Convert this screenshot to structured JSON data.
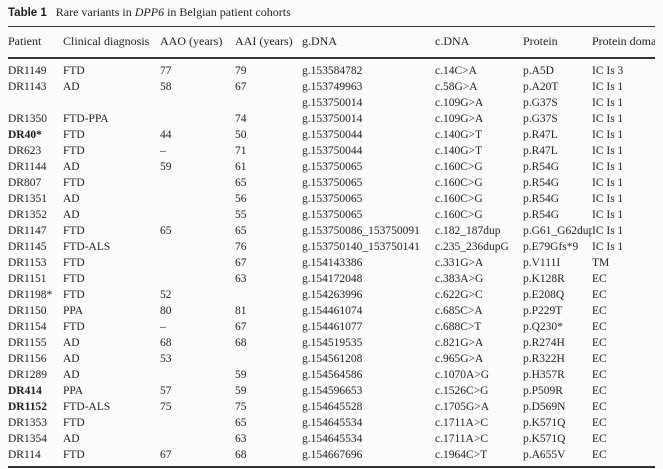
{
  "table": {
    "caption_label": "Table 1",
    "caption_prefix": "Rare variants in ",
    "caption_gene": "DPP6",
    "caption_suffix": " in Belgian patient cohorts",
    "columns": [
      "Patient",
      "Clinical diagnosis",
      "AAO (years)",
      "AAI (years)",
      "g.DNA",
      "c.DNA",
      "Protein",
      "Protein domain"
    ],
    "row_keys": [
      "patient",
      "diagnosis",
      "aao",
      "aai",
      "gdna",
      "cdna",
      "protein",
      "domain"
    ],
    "rows": [
      {
        "patient": "DR1149",
        "bold": false,
        "diagnosis": "FTD",
        "aao": "77",
        "aai": "79",
        "gdna": "g.153584782",
        "cdna": "c.14C>A",
        "protein": "p.A5D",
        "domain": "IC Is 3"
      },
      {
        "patient": "DR1143",
        "bold": false,
        "diagnosis": "AD",
        "aao": "58",
        "aai": "67",
        "gdna": "g.153749963",
        "cdna": "c.58G>A",
        "protein": "p.A20T",
        "domain": "IC Is 1"
      },
      {
        "patient": "",
        "bold": false,
        "diagnosis": "",
        "aao": "",
        "aai": "",
        "gdna": "g.153750014",
        "cdna": "c.109G>A",
        "protein": "p.G37S",
        "domain": "IC Is 1"
      },
      {
        "patient": "DR1350",
        "bold": false,
        "diagnosis": "FTD-PPA",
        "aao": "",
        "aai": "74",
        "gdna": "g.153750014",
        "cdna": "c.109G>A",
        "protein": "p.G37S",
        "domain": "IC Is 1"
      },
      {
        "patient": "DR40*",
        "bold": true,
        "diagnosis": "FTD",
        "aao": "44",
        "aai": "50",
        "gdna": "g.153750044",
        "cdna": "c.140G>T",
        "protein": "p.R47L",
        "domain": "IC Is 1"
      },
      {
        "patient": "DR623",
        "bold": false,
        "diagnosis": "FTD",
        "aao": "–",
        "aai": "71",
        "gdna": "g.153750044",
        "cdna": "c.140G>T",
        "protein": "p.R47L",
        "domain": "IC Is 1"
      },
      {
        "patient": "DR1144",
        "bold": false,
        "diagnosis": "AD",
        "aao": "59",
        "aai": "61",
        "gdna": "g.153750065",
        "cdna": "c.160C>G",
        "protein": "p.R54G",
        "domain": "IC Is 1"
      },
      {
        "patient": "DR807",
        "bold": false,
        "diagnosis": "FTD",
        "aao": "",
        "aai": "65",
        "gdna": "g.153750065",
        "cdna": "c.160C>G",
        "protein": "p.R54G",
        "domain": "IC Is 1"
      },
      {
        "patient": "DR1351",
        "bold": false,
        "diagnosis": "AD",
        "aao": "",
        "aai": "56",
        "gdna": "g.153750065",
        "cdna": "c.160C>G",
        "protein": "p.R54G",
        "domain": "IC Is 1"
      },
      {
        "patient": "DR1352",
        "bold": false,
        "diagnosis": "AD",
        "aao": "",
        "aai": "55",
        "gdna": "g.153750065",
        "cdna": "c.160C>G",
        "protein": "p.R54G",
        "domain": "IC Is 1"
      },
      {
        "patient": "DR1147",
        "bold": false,
        "diagnosis": "FTD",
        "aao": "65",
        "aai": "65",
        "gdna": "g.153750086_153750091",
        "cdna": "c.182_187dup",
        "protein": "p.G61_G62dup",
        "domain": "IC Is 1"
      },
      {
        "patient": "DR1145",
        "bold": false,
        "diagnosis": "FTD-ALS",
        "aao": "",
        "aai": "76",
        "gdna": "g.153750140_153750141",
        "cdna": "c.235_236dupG",
        "protein": "p.E79Gfs*9",
        "domain": "IC Is 1"
      },
      {
        "patient": "DR1153",
        "bold": false,
        "diagnosis": "FTD",
        "aao": "",
        "aai": "67",
        "gdna": "g.154143386",
        "cdna": "c.331G>A",
        "protein": "p.V111I",
        "domain": "TM"
      },
      {
        "patient": "DR1151",
        "bold": false,
        "diagnosis": "FTD",
        "aao": "",
        "aai": "63",
        "gdna": "g.154172048",
        "cdna": "c.383A>G",
        "protein": "p.K128R",
        "domain": "EC"
      },
      {
        "patient": "DR1198*",
        "bold": false,
        "diagnosis": "FTD",
        "aao": "52",
        "aai": "",
        "gdna": "g.154263996",
        "cdna": "c.622G>C",
        "protein": "p.E208Q",
        "domain": "EC"
      },
      {
        "patient": "DR1150",
        "bold": false,
        "diagnosis": "PPA",
        "aao": "80",
        "aai": "81",
        "gdna": "g.154461074",
        "cdna": "c.685C>A",
        "protein": "p.P229T",
        "domain": "EC"
      },
      {
        "patient": "DR1154",
        "bold": false,
        "diagnosis": "FTD",
        "aao": "–",
        "aai": "67",
        "gdna": "g.154461077",
        "cdna": "c.688C>T",
        "protein": "p.Q230*",
        "domain": "EC"
      },
      {
        "patient": "DR1155",
        "bold": false,
        "diagnosis": "AD",
        "aao": "68",
        "aai": "68",
        "gdna": "g.154519535",
        "cdna": "c.821G>A",
        "protein": "p.R274H",
        "domain": "EC"
      },
      {
        "patient": "DR1156",
        "bold": false,
        "diagnosis": "AD",
        "aao": "53",
        "aai": "",
        "gdna": "g.154561208",
        "cdna": "c.965G>A",
        "protein": "p.R322H",
        "domain": "EC"
      },
      {
        "patient": "DR1289",
        "bold": false,
        "diagnosis": "AD",
        "aao": "",
        "aai": "59",
        "gdna": "g.154564586",
        "cdna": "c.1070A>G",
        "protein": "p.H357R",
        "domain": "EC"
      },
      {
        "patient": "DR414",
        "bold": true,
        "diagnosis": "PPA",
        "aao": "57",
        "aai": "59",
        "gdna": "g.154596653",
        "cdna": "c.1526C>G",
        "protein": "p.P509R",
        "domain": "EC"
      },
      {
        "patient": "DR1152",
        "bold": true,
        "diagnosis": "FTD-ALS",
        "aao": "75",
        "aai": "75",
        "gdna": "g.154645528",
        "cdna": "c.1705G>A",
        "protein": "p.D569N",
        "domain": "EC"
      },
      {
        "patient": "DR1353",
        "bold": false,
        "diagnosis": "FTD",
        "aao": "",
        "aai": "65",
        "gdna": "g.154645534",
        "cdna": "c.1711A>C",
        "protein": "p.K571Q",
        "domain": "EC"
      },
      {
        "patient": "DR1354",
        "bold": false,
        "diagnosis": "AD",
        "aao": "",
        "aai": "63",
        "gdna": "g.154645534",
        "cdna": "c.1711A>C",
        "protein": "p.K571Q",
        "domain": "EC"
      },
      {
        "patient": "DR114",
        "bold": false,
        "diagnosis": "FTD",
        "aao": "67",
        "aai": "68",
        "gdna": "g.154667696",
        "cdna": "c.1964C>T",
        "protein": "p.A655V",
        "domain": "EC"
      }
    ]
  }
}
